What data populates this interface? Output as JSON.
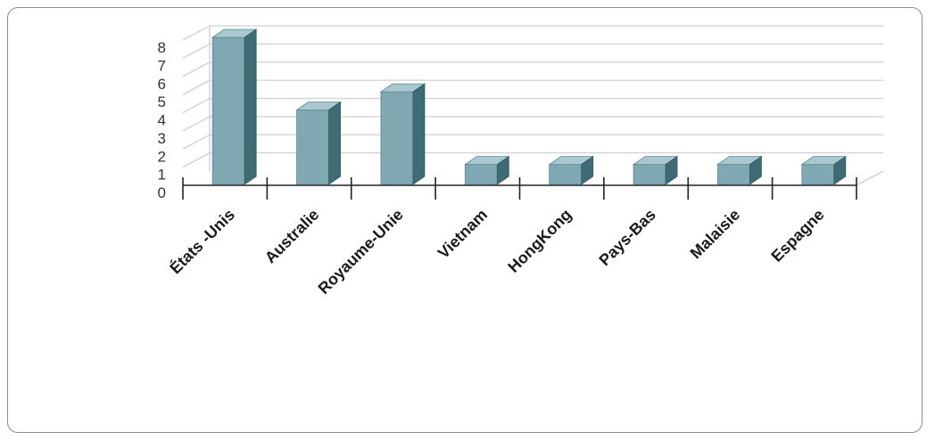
{
  "chart_data": {
    "type": "bar",
    "style": "3d-column",
    "categories": [
      "États -Unis",
      "Australie",
      "Royaume-Unie",
      "Vietnam",
      "HongKong",
      "Pays-Bas",
      "Malaisie",
      "Espagne"
    ],
    "values": [
      8,
      4,
      5,
      1,
      1,
      1,
      1,
      1
    ],
    "y_ticks": [
      "0",
      "1",
      "2",
      "3",
      "4",
      "5",
      "6",
      "7",
      "8"
    ],
    "ylim": [
      0,
      8
    ],
    "grid": true,
    "legend": "none",
    "colors": {
      "bar_front": "#7fa8b2",
      "bar_top": "#a9c8cf",
      "bar_side": "#3f6b75",
      "grid": "#d0d0d0",
      "axis": "#222222"
    }
  }
}
